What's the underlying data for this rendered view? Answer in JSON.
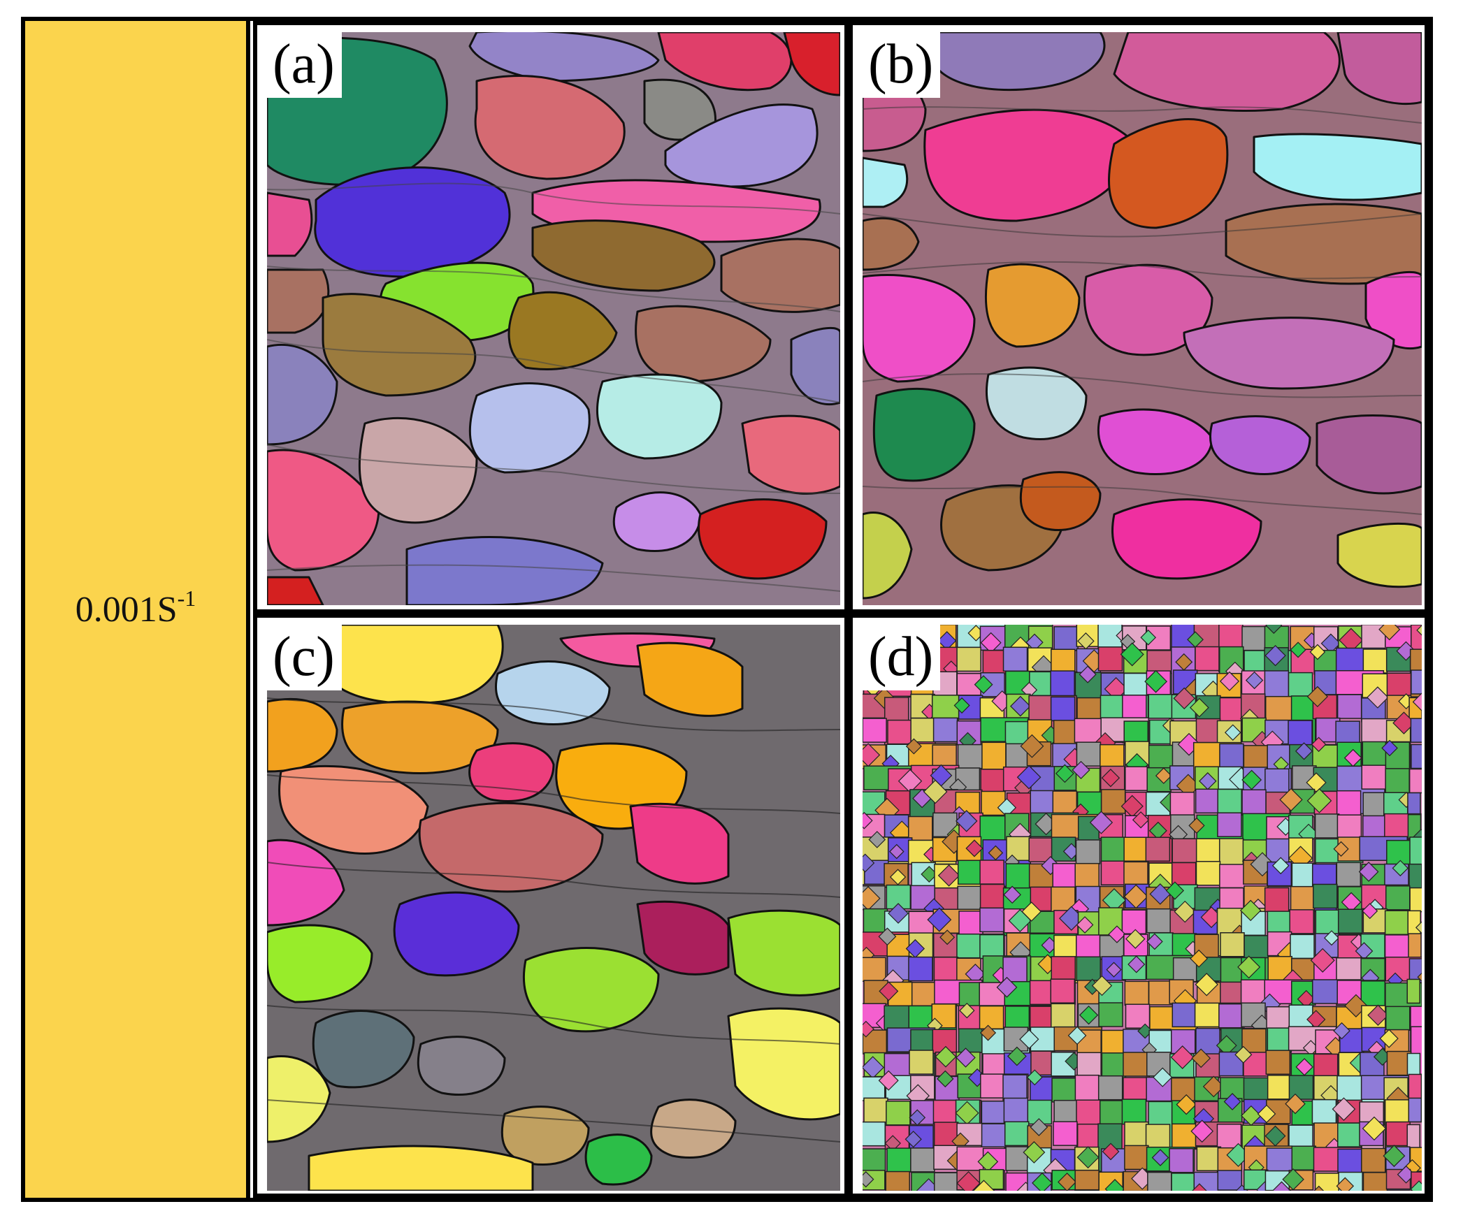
{
  "strain_rate": {
    "base": "0.001S",
    "exponent": "-1"
  },
  "panels": [
    {
      "id": "a",
      "label": "(a)"
    },
    {
      "id": "b",
      "label": "(b)"
    },
    {
      "id": "c",
      "label": "(c)"
    },
    {
      "id": "d",
      "label": "(d)"
    }
  ],
  "colors": {
    "rate_cell_background": "#fbd44d",
    "border": "#000000"
  }
}
